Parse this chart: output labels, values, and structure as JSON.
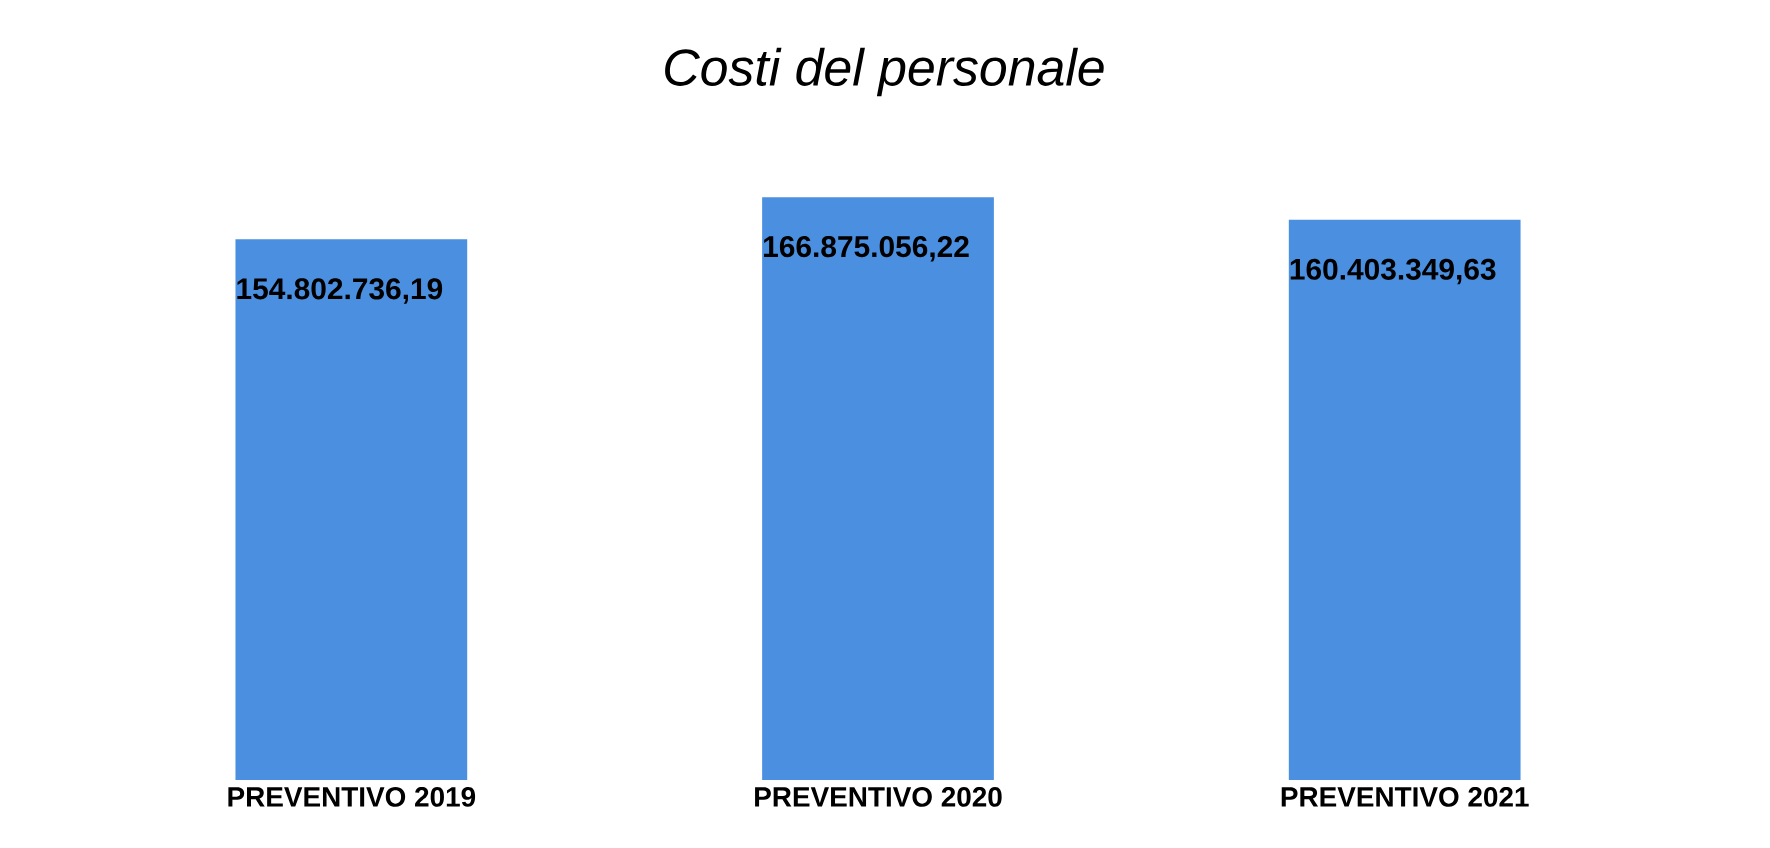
{
  "chart_data": {
    "type": "bar",
    "title": "Costi del personale",
    "categories": [
      "PREVENTIVO 2019",
      "PREVENTIVO 2020",
      "PREVENTIVO 2021"
    ],
    "values": [
      154802736.19,
      166875056.22,
      160403349.63
    ],
    "value_labels": [
      "154.802.736,19",
      "166.875.056,22",
      "160.403.349,63"
    ],
    "color": "#4a8fe0"
  }
}
